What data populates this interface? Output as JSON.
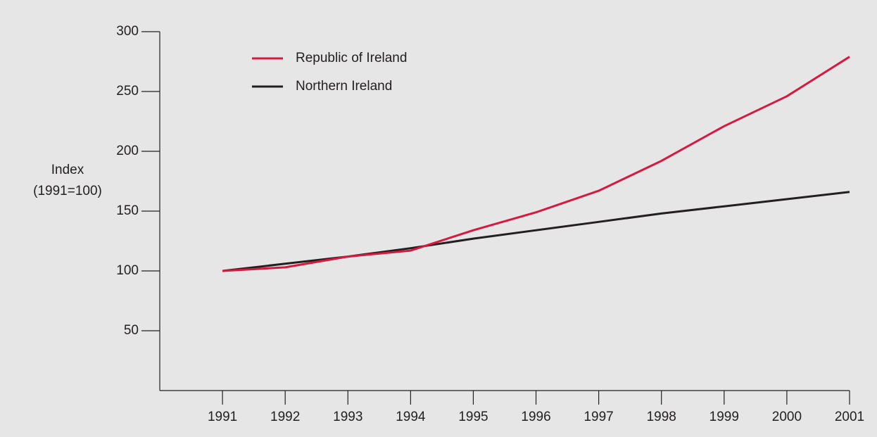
{
  "chart_data": {
    "type": "line",
    "ylabel": [
      "Index",
      "(1991=100)"
    ],
    "x": [
      1991,
      1992,
      1993,
      1994,
      1995,
      1996,
      1997,
      1998,
      1999,
      2000,
      2001
    ],
    "series": [
      {
        "name": "Republic of Ireland",
        "color": "#d7193f",
        "values": [
          100,
          103,
          112,
          117,
          134,
          149,
          167,
          192,
          221,
          246,
          279
        ]
      },
      {
        "name": "Northern Ireland",
        "color": "#231f20",
        "values": [
          100,
          106,
          112,
          119,
          127,
          134,
          141,
          148,
          154,
          160,
          166
        ]
      }
    ],
    "xlim": [
      1990,
      2001
    ],
    "xticks": [
      1991,
      1992,
      1993,
      1994,
      1995,
      1996,
      1997,
      1998,
      1999,
      2000,
      2001
    ],
    "ylim": [
      0,
      300
    ],
    "yticks": [
      50,
      100,
      150,
      200,
      250,
      300
    ],
    "grid": false,
    "legend": "upper left"
  }
}
